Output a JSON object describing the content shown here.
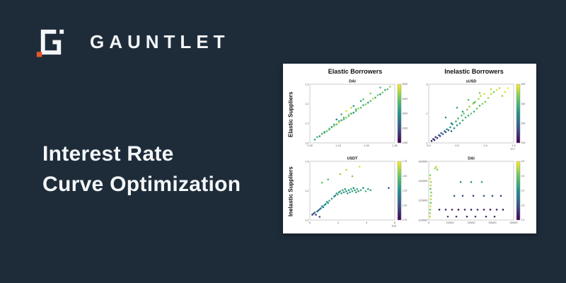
{
  "background_color": "#1E2C3A",
  "brand": {
    "name": "GAUNTLET",
    "accent_color": "#E8552B",
    "logo_color": "#F4F6F8"
  },
  "title": {
    "line1": "Interest Rate",
    "line2": "Curve Optimization"
  },
  "panel": {
    "background": "#FFFFFF",
    "col_headers": [
      "Elastic Borrowers",
      "Inelastic Borrowers"
    ],
    "row_labels": [
      "Elastic Suppliers",
      "Inelastic Suppliers"
    ]
  },
  "chart_data": [
    {
      "type": "scatter",
      "title": "DAI",
      "col_header": "Elastic Borrowers",
      "row_label": "Elastic Suppliers",
      "colormap": "viridis",
      "legend_position": "colorbar-right",
      "grid": false,
      "xlim": [
        0.95,
        1.3
      ],
      "ylim": [
        0.95,
        1.3
      ],
      "xticks": [
        "1.00",
        "1.10",
        "1.20",
        "1.30"
      ],
      "yticks": [
        "1.0",
        "1.1",
        "1.2",
        "1.3"
      ],
      "x_offset": "",
      "colorbar_ticks": [
        "5000",
        "4000",
        "3000",
        "2000",
        "1000"
      ],
      "x": [
        0.97,
        0.98,
        0.99,
        1.0,
        1.01,
        1.01,
        1.02,
        1.03,
        1.03,
        1.04,
        1.05,
        1.05,
        1.06,
        1.07,
        1.07,
        1.08,
        1.09,
        1.09,
        1.1,
        1.11,
        1.11,
        1.12,
        1.13,
        1.14,
        1.14,
        1.15,
        1.16,
        1.17,
        1.18,
        1.19,
        1.2,
        1.21,
        1.22,
        1.23,
        1.24,
        1.25,
        1.26,
        1.27,
        1.28,
        1.06,
        1.1,
        1.13,
        1.17,
        1.08,
        1.12,
        1.16,
        1.2,
        1.24
      ],
      "y": [
        0.97,
        0.985,
        0.99,
        1.005,
        1.01,
        1.015,
        1.02,
        1.03,
        1.035,
        1.045,
        1.05,
        1.06,
        1.06,
        1.07,
        1.08,
        1.085,
        1.09,
        1.1,
        1.1,
        1.11,
        1.12,
        1.125,
        1.13,
        1.14,
        1.15,
        1.155,
        1.16,
        1.175,
        1.18,
        1.19,
        1.2,
        1.215,
        1.22,
        1.235,
        1.24,
        1.25,
        1.265,
        1.27,
        1.285,
        1.09,
        1.14,
        1.17,
        1.21,
        1.12,
        1.16,
        1.2,
        1.245,
        1.28
      ],
      "c": [
        0.6,
        0.7,
        0.5,
        0.65,
        0.8,
        0.55,
        0.7,
        0.6,
        0.75,
        0.5,
        0.85,
        0.6,
        0.7,
        0.95,
        0.65,
        0.55,
        0.75,
        0.6,
        0.8,
        0.7,
        0.9,
        0.6,
        0.5,
        0.75,
        0.65,
        0.85,
        0.7,
        0.6,
        0.8,
        0.55,
        0.7,
        0.9,
        0.65,
        0.75,
        0.5,
        0.8,
        0.6,
        0.7,
        0.85,
        0.45,
        0.95,
        0.55,
        0.75,
        0.65,
        0.9,
        0.6,
        0.8,
        0.7
      ]
    },
    {
      "type": "scatter",
      "title": "sUSD",
      "col_header": "Inelastic Borrowers",
      "row_label": "Elastic Suppliers",
      "colormap": "viridis",
      "legend_position": "colorbar-right",
      "grid": false,
      "xlim": [
        0,
        1.5
      ],
      "ylim": [
        0.5,
        3.5
      ],
      "xticks": [
        "0.0",
        "0.5",
        "1.0",
        "1.5"
      ],
      "yticks": [
        "1",
        "2",
        "3"
      ],
      "x_offset": "1e7",
      "colorbar_ticks": [
        "400",
        "300",
        "200",
        "100"
      ],
      "x": [
        0.05,
        0.08,
        0.1,
        0.12,
        0.15,
        0.18,
        0.2,
        0.22,
        0.25,
        0.28,
        0.3,
        0.32,
        0.35,
        0.38,
        0.4,
        0.42,
        0.45,
        0.48,
        0.5,
        0.52,
        0.55,
        0.58,
        0.6,
        0.62,
        0.65,
        0.68,
        0.7,
        0.72,
        0.75,
        0.78,
        0.8,
        0.82,
        0.85,
        0.88,
        0.9,
        0.92,
        0.95,
        0.98,
        1.0,
        1.05,
        1.1,
        1.15,
        1.2,
        1.25,
        1.3,
        1.35,
        1.4,
        0.3,
        0.5,
        0.7,
        0.9,
        1.1,
        0.4,
        0.6,
        0.8
      ],
      "y": [
        0.6,
        0.7,
        0.65,
        0.8,
        0.75,
        0.9,
        0.85,
        1.0,
        0.95,
        1.1,
        1.05,
        1.2,
        1.15,
        1.3,
        1.1,
        1.45,
        1.25,
        1.6,
        1.4,
        1.75,
        1.5,
        1.9,
        1.65,
        2.0,
        1.8,
        2.2,
        1.9,
        2.35,
        2.0,
        2.5,
        2.1,
        2.6,
        2.25,
        2.75,
        2.4,
        2.9,
        2.5,
        3.0,
        2.6,
        2.8,
        3.0,
        3.1,
        3.2,
        3.3,
        2.9,
        3.1,
        3.3,
        1.8,
        2.3,
        2.7,
        3.05,
        3.25,
        1.5,
        2.1,
        2.55
      ],
      "c": [
        0.1,
        0.15,
        0.1,
        0.2,
        0.15,
        0.25,
        0.2,
        0.3,
        0.25,
        0.35,
        0.3,
        0.45,
        0.4,
        0.5,
        0.35,
        0.55,
        0.45,
        0.6,
        0.5,
        0.65,
        0.55,
        0.7,
        0.6,
        0.75,
        0.65,
        0.8,
        0.6,
        0.85,
        0.7,
        0.9,
        0.65,
        0.8,
        0.75,
        0.85,
        0.7,
        0.9,
        0.8,
        0.95,
        0.75,
        0.85,
        0.9,
        0.8,
        0.95,
        0.9,
        0.85,
        0.95,
        1.0,
        0.5,
        0.6,
        0.7,
        0.8,
        0.9,
        0.4,
        0.55,
        0.65
      ]
    },
    {
      "type": "scatter",
      "title": "USDT",
      "col_header": "Elastic Borrowers",
      "row_label": "Inelastic Suppliers",
      "colormap": "viridis",
      "legend_position": "colorbar-right",
      "grid": false,
      "xlim": [
        0,
        7
      ],
      "ylim": [
        0.95,
        1.5
      ],
      "xticks": [
        "0",
        "2",
        "4",
        "6"
      ],
      "yticks": [
        "1.0",
        "1.2",
        "1.4"
      ],
      "x_offset": "1e6",
      "colorbar_ticks": [
        "1.75",
        "1.50",
        "1.25",
        "1.00",
        "0.75"
      ],
      "x": [
        0.2,
        0.3,
        0.4,
        0.5,
        0.6,
        0.7,
        0.8,
        0.9,
        1.0,
        1.1,
        1.2,
        1.3,
        1.4,
        1.5,
        1.6,
        1.8,
        2.0,
        2.1,
        2.2,
        2.3,
        2.4,
        2.5,
        2.6,
        2.7,
        2.8,
        2.9,
        3.0,
        3.1,
        3.2,
        3.3,
        3.4,
        3.5,
        3.6,
        3.7,
        3.8,
        3.9,
        4.0,
        4.2,
        4.4,
        4.6,
        4.8,
        5.0,
        2.5,
        3.0,
        3.5,
        1.0,
        1.5,
        6.5,
        0.8,
        4.1
      ],
      "y": [
        1.0,
        1.01,
        1.02,
        1.0,
        1.03,
        1.04,
        1.05,
        1.06,
        1.08,
        1.07,
        1.09,
        1.1,
        1.12,
        1.11,
        1.13,
        1.15,
        1.17,
        1.18,
        1.2,
        1.19,
        1.21,
        1.22,
        1.2,
        1.23,
        1.21,
        1.24,
        1.22,
        1.2,
        1.23,
        1.21,
        1.24,
        1.22,
        1.25,
        1.23,
        1.21,
        1.24,
        1.22,
        1.23,
        1.25,
        1.22,
        1.24,
        1.23,
        1.38,
        1.42,
        1.36,
        1.3,
        1.33,
        1.25,
        0.98,
        1.45
      ],
      "c": [
        0.2,
        0.25,
        0.3,
        0.2,
        0.35,
        0.3,
        0.4,
        0.35,
        0.45,
        0.4,
        0.5,
        0.45,
        0.55,
        0.5,
        0.6,
        0.55,
        0.5,
        0.45,
        0.55,
        0.6,
        0.5,
        0.65,
        0.55,
        0.6,
        0.5,
        0.55,
        0.45,
        0.6,
        0.5,
        0.55,
        0.65,
        0.6,
        0.5,
        0.55,
        0.6,
        0.65,
        0.55,
        0.6,
        0.5,
        0.65,
        0.55,
        0.6,
        0.85,
        0.9,
        0.8,
        0.75,
        0.7,
        0.3,
        0.25,
        0.95
      ]
    },
    {
      "type": "scatter",
      "title": "DAI",
      "col_header": "Inelastic Borrowers",
      "row_label": "Inelastic Suppliers",
      "colormap": "viridis",
      "legend_position": "colorbar-right",
      "grid": false,
      "xlim": [
        0,
        40000
      ],
      "ylim": [
        95000,
        180000
      ],
      "xticks": [
        "0",
        "10000",
        "20000",
        "30000",
        "40000"
      ],
      "yticks": [
        "100000",
        "120000",
        "140000",
        "160000"
      ],
      "x_offset": "",
      "colorbar_ticks": [
        "3.0",
        "2.5",
        "2.0",
        "1.5",
        "1.0"
      ],
      "x": [
        500,
        600,
        700,
        800,
        900,
        1000,
        1100,
        1200,
        800,
        900,
        1000,
        600,
        700,
        5000,
        8000,
        11000,
        14000,
        17000,
        20000,
        23000,
        26000,
        29000,
        32000,
        35000,
        9000,
        13000,
        18000,
        22000,
        27000,
        31000,
        12000,
        16000,
        21000,
        26000,
        30000,
        34000,
        15000,
        20000,
        25000,
        3000,
        3500,
        4000
      ],
      "y": [
        100000,
        105000,
        110000,
        115000,
        120000,
        125000,
        130000,
        135000,
        140000,
        145000,
        150000,
        155000,
        160000,
        110000,
        110000,
        110000,
        110000,
        110000,
        110000,
        110000,
        110000,
        110000,
        110000,
        110000,
        100000,
        100000,
        100000,
        100000,
        100000,
        100000,
        130000,
        130000,
        130000,
        130000,
        130000,
        130000,
        150000,
        150000,
        150000,
        170000,
        172000,
        168000
      ],
      "c": [
        0.9,
        0.85,
        0.8,
        0.95,
        0.75,
        0.9,
        0.85,
        0.8,
        0.7,
        0.9,
        0.85,
        0.95,
        0.8,
        0.1,
        0.15,
        0.1,
        0.05,
        0.12,
        0.08,
        0.15,
        0.1,
        0.05,
        0.12,
        0.08,
        0.2,
        0.15,
        0.1,
        0.18,
        0.12,
        0.08,
        0.3,
        0.25,
        0.2,
        0.3,
        0.25,
        0.2,
        0.5,
        0.45,
        0.55,
        0.85,
        0.9,
        0.8
      ]
    }
  ]
}
